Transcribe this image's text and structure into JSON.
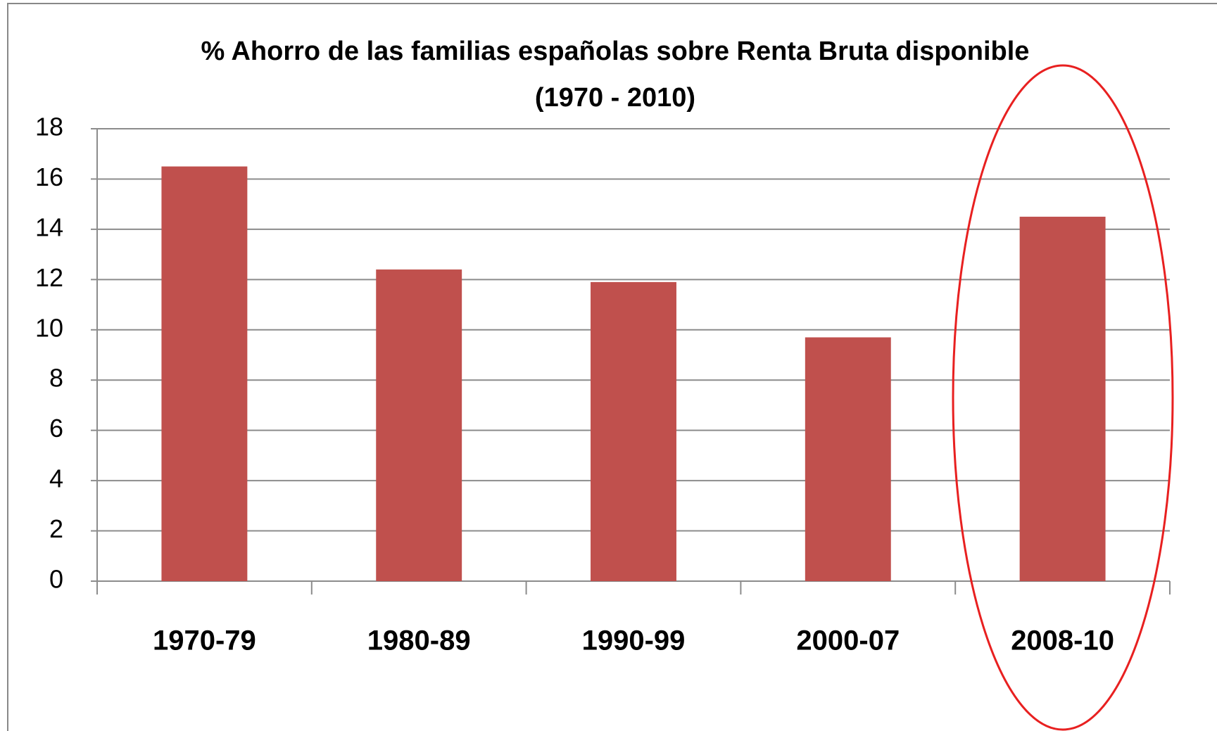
{
  "chart_data": {
    "type": "bar",
    "title": "% Ahorro de las familias  españolas sobre Renta Bruta disponible",
    "subtitle": "(1970 - 2010)",
    "categories": [
      "1970-79",
      "1980-89",
      "1990-99",
      "2000-07",
      "2008-10"
    ],
    "values": [
      16.5,
      12.4,
      11.9,
      9.7,
      14.5
    ],
    "color": "#c0504d",
    "ylim": [
      0,
      18
    ],
    "yticks": [
      0,
      2,
      4,
      6,
      8,
      10,
      12,
      14,
      16,
      18
    ],
    "grid": true
  }
}
